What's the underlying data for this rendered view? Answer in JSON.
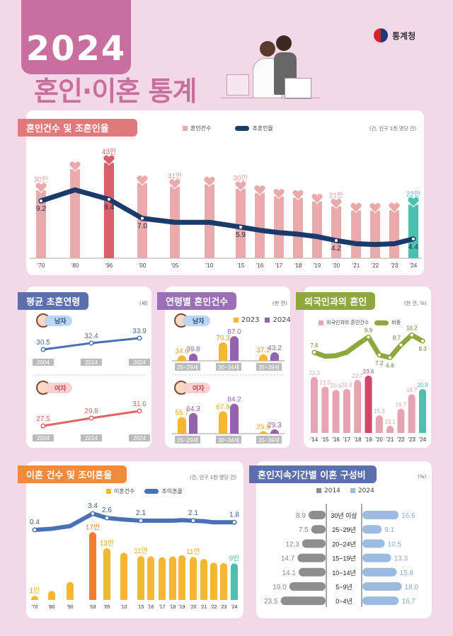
{
  "header": {
    "year": "2024",
    "title": "혼인·이혼 통계",
    "agency": "통계청"
  },
  "colors": {
    "background": "#f4d8e8",
    "accent": "#c96f9f",
    "marriage_bar": "#e8aaaa",
    "marriage_peak": "#d9606a",
    "highlight_2024": "#4bbfb0",
    "marriage_rate_line": "#1a3a6b",
    "male": "#4a6fb5",
    "female": "#e06464",
    "year_2023": "#f5b731",
    "year_2024": "#9463b0",
    "foreign_bar": "#e8a3b3",
    "foreign_line": "#8ea83e",
    "divorce_bar": "#f5b731",
    "divorce_peak": "#f07c2c",
    "divorce_line": "#4a70b5",
    "duration_2014": "#8e8e8e",
    "duration_2024": "#9bbbe0"
  },
  "panels": {
    "marriage": {
      "title": "혼인건수 및 조혼인율",
      "unit": "(건, 인구 1천 명당 건)",
      "legend": [
        "혼인건수",
        "조혼인율"
      ]
    },
    "age": {
      "title": "평균 초혼연령",
      "unit": "(세)",
      "male": "남자",
      "female": "여자"
    },
    "agegroup": {
      "title": "연령별 혼인건수",
      "unit": "(천 건)",
      "legend": [
        "2023",
        "2024"
      ],
      "male": "남자",
      "female": "여자"
    },
    "foreign": {
      "title": "외국인과의 혼인",
      "unit": "(천 건, %)",
      "legend": [
        "외국인과의 혼인건수",
        "비중"
      ]
    },
    "divorce": {
      "title": "이혼 건수 및 조이혼율",
      "unit": "(건, 인구 1천 명당 건)",
      "legend": [
        "이혼건수",
        "조이혼율"
      ]
    },
    "duration": {
      "title": "혼인지속기간별 이혼 구성비",
      "unit": "(%)",
      "legend": [
        "2014",
        "2024"
      ]
    }
  },
  "chart_data": [
    {
      "id": "marriage",
      "type": "bar+line",
      "title": "혼인건수 및 조혼인율",
      "categories": [
        "'70",
        "'80",
        "'96",
        "'00",
        "'05",
        "'10",
        "'15",
        "'16",
        "'17",
        "'18",
        "'19",
        "'20",
        "'21",
        "'22",
        "'23",
        "'24"
      ],
      "series": [
        {
          "name": "혼인건수",
          "unit": "만 건",
          "values": [
            29.5,
            40.3,
            43.5,
            33.2,
            31.4,
            32.6,
            30.3,
            28.2,
            26.4,
            25.8,
            23.9,
            21.4,
            19.3,
            19.2,
            19.4,
            22.2
          ],
          "labels": [
            "30만",
            null,
            "43만",
            null,
            "31만",
            null,
            "30만",
            null,
            null,
            null,
            null,
            "21만",
            null,
            null,
            null,
            "22만"
          ]
        },
        {
          "name": "조혼인율",
          "values": [
            9.2,
            10.6,
            9.4,
            7.0,
            6.5,
            6.5,
            5.9,
            5.5,
            5.2,
            5.0,
            4.7,
            4.2,
            3.8,
            3.7,
            3.8,
            4.4
          ],
          "labels": [
            "9.2",
            null,
            "9.4",
            "7.0",
            null,
            null,
            "5.9",
            null,
            null,
            null,
            null,
            "4.2",
            null,
            null,
            null,
            "4.4"
          ]
        }
      ]
    },
    {
      "id": "age",
      "type": "line",
      "title": "평균 초혼연령",
      "categories": [
        "2004",
        "2014",
        "2024"
      ],
      "series": [
        {
          "name": "남자",
          "values": [
            30.5,
            32.4,
            33.9
          ]
        },
        {
          "name": "여자",
          "values": [
            27.5,
            29.8,
            31.6
          ]
        }
      ]
    },
    {
      "id": "agegroup",
      "type": "bar",
      "title": "연령별 혼인건수",
      "categories": [
        "25~29세",
        "30~34세",
        "35~39세"
      ],
      "male": [
        {
          "name": "2023",
          "values": [
            34.6,
            70.3,
            37.2
          ]
        },
        {
          "name": "2024",
          "values": [
            39.8,
            87.0,
            43.2
          ]
        }
      ],
      "female": [
        {
          "name": "2023",
          "values": [
            55.7,
            67.9,
            25.5
          ]
        },
        {
          "name": "2024",
          "values": [
            64.3,
            84.2,
            29.3
          ]
        }
      ]
    },
    {
      "id": "foreign",
      "type": "bar+line",
      "title": "외국인과의 혼인",
      "categories": [
        "'14",
        "'15",
        "'16",
        "'17",
        "'18",
        "'19",
        "'20",
        "'21",
        "'22",
        "'23",
        "'24"
      ],
      "series": [
        {
          "name": "외국인과의 혼인건수",
          "values": [
            23.3,
            21.3,
            20.6,
            20.8,
            22.7,
            23.6,
            15.3,
            13.1,
            16.7,
            19.7,
            20.8
          ]
        },
        {
          "name": "비중",
          "values": [
            7.6,
            7.0,
            7.1,
            7.6,
            8.8,
            9.9,
            7.2,
            6.8,
            8.7,
            10.2,
            9.3
          ],
          "labels": [
            "7.6",
            null,
            null,
            null,
            null,
            "9.9",
            "7.2",
            "6.8",
            "8.7",
            "10.2",
            "9.3"
          ]
        }
      ]
    },
    {
      "id": "divorce",
      "type": "bar+line",
      "title": "이혼 건수 및 조이혼율",
      "categories": [
        "'70",
        "'80",
        "'90",
        "'03",
        "'05",
        "'10",
        "'15",
        "'16",
        "'17",
        "'18",
        "'19",
        "'20",
        "'21",
        "'22",
        "'23",
        "'24"
      ],
      "series": [
        {
          "name": "이혼건수",
          "unit": "만 건",
          "values": [
            1.2,
            2.4,
            4.6,
            16.7,
            12.8,
            11.7,
            10.9,
            10.8,
            10.6,
            10.8,
            11.1,
            10.7,
            10.2,
            9.3,
            9.2,
            9.1
          ],
          "labels": [
            "1만",
            null,
            null,
            "17만",
            "13만",
            null,
            "11만",
            null,
            null,
            null,
            null,
            "11만",
            null,
            null,
            null,
            "9만"
          ]
        },
        {
          "name": "조이혼율",
          "values": [
            0.4,
            0.6,
            1.1,
            3.4,
            2.6,
            2.3,
            2.1,
            2.1,
            2.1,
            2.1,
            2.2,
            2.1,
            2.0,
            1.8,
            1.8,
            1.8
          ],
          "labels": [
            "0.4",
            null,
            null,
            "3.4",
            "2.6",
            null,
            "2.1",
            null,
            null,
            null,
            null,
            "2.1",
            null,
            null,
            null,
            "1.8"
          ]
        }
      ]
    },
    {
      "id": "duration",
      "type": "bar",
      "title": "혼인지속기간별 이혼 구성비",
      "categories": [
        "30년 이상",
        "25~29년",
        "20~24년",
        "15~19년",
        "10~14년",
        "5~9년",
        "0~4년"
      ],
      "series": [
        {
          "name": "2014",
          "values": [
            8.9,
            7.5,
            12.3,
            14.7,
            14.1,
            19.0,
            23.5
          ]
        },
        {
          "name": "2024",
          "values": [
            16.6,
            9.1,
            10.5,
            13.3,
            15.8,
            18.0,
            16.7
          ]
        }
      ]
    }
  ]
}
